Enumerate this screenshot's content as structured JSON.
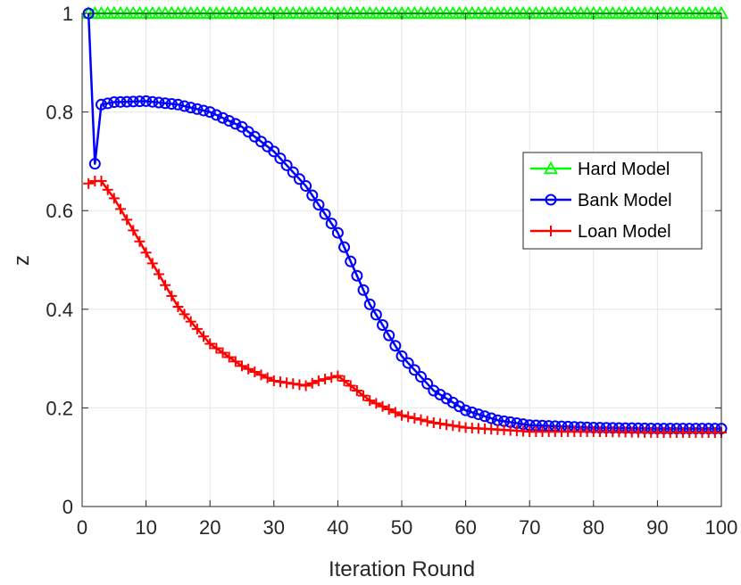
{
  "chart_data": {
    "type": "line",
    "title": "",
    "xlabel": "Iteration Round",
    "ylabel": "z",
    "xlim": [
      0,
      100
    ],
    "ylim": [
      0,
      1
    ],
    "xticks": [
      0,
      10,
      20,
      30,
      40,
      50,
      60,
      70,
      80,
      90,
      100
    ],
    "yticks": [
      0,
      0.2,
      0.4,
      0.6,
      0.8,
      1
    ],
    "ytick_labels": [
      "0",
      "0.2",
      "0.4",
      "0.6",
      "0.8",
      "1"
    ],
    "grid": true,
    "legend_position": "right",
    "series": [
      {
        "name": "Hard Model",
        "color": "#00ff00",
        "marker": "triangle",
        "x": [
          1,
          100
        ],
        "y": [
          1.0,
          1.0
        ]
      },
      {
        "name": "Bank Model",
        "color": "#0000ff",
        "marker": "circle",
        "x": [
          1,
          2,
          3,
          5,
          10,
          15,
          20,
          25,
          30,
          35,
          40,
          45,
          50,
          55,
          60,
          65,
          70,
          80,
          90,
          100
        ],
        "y": [
          1.0,
          0.695,
          0.815,
          0.82,
          0.822,
          0.815,
          0.8,
          0.77,
          0.72,
          0.65,
          0.555,
          0.41,
          0.305,
          0.235,
          0.195,
          0.175,
          0.165,
          0.16,
          0.158,
          0.158
        ]
      },
      {
        "name": "Loan Model",
        "color": "#ff0000",
        "marker": "plus",
        "x": [
          1,
          2,
          3,
          5,
          8,
          10,
          15,
          20,
          25,
          30,
          35,
          37,
          40,
          42,
          45,
          50,
          55,
          60,
          70,
          80,
          90,
          100
        ],
        "y": [
          0.655,
          0.66,
          0.66,
          0.625,
          0.56,
          0.515,
          0.405,
          0.33,
          0.285,
          0.255,
          0.245,
          0.255,
          0.265,
          0.245,
          0.215,
          0.185,
          0.17,
          0.16,
          0.152,
          0.152,
          0.15,
          0.15
        ]
      }
    ]
  }
}
